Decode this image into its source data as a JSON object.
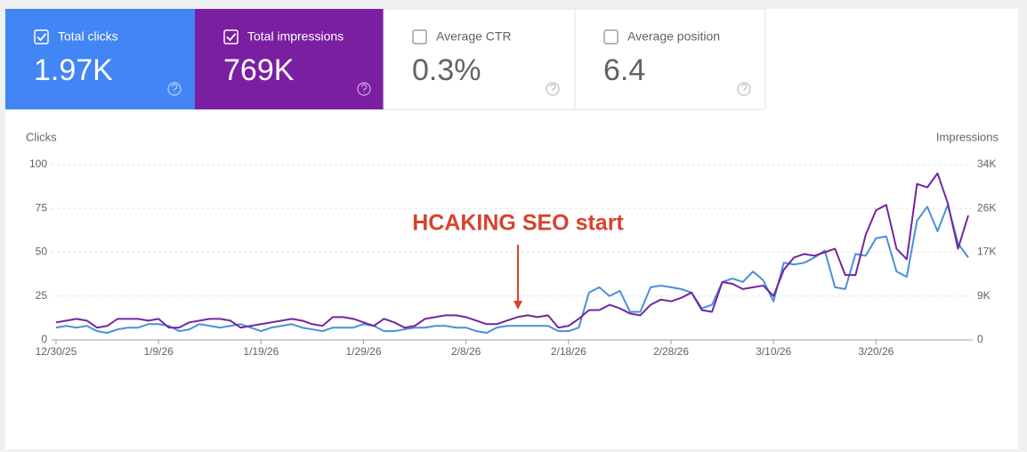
{
  "cards": [
    {
      "label": "Total clicks",
      "value": "1.97K",
      "checked": true,
      "color": "#4285f4"
    },
    {
      "label": "Total impressions",
      "value": "769K",
      "checked": true,
      "color": "#7b1fa2"
    },
    {
      "label": "Average CTR",
      "value": "0.3%",
      "checked": false,
      "color": "#ffffff"
    },
    {
      "label": "Average position",
      "value": "6.4",
      "checked": false,
      "color": "#ffffff"
    }
  ],
  "chart_data": {
    "type": "line",
    "annotation": "HCAKING SEO start",
    "categories": [
      "12/30/25",
      null,
      null,
      null,
      null,
      null,
      null,
      null,
      null,
      null,
      "1/9/26",
      null,
      null,
      null,
      null,
      null,
      null,
      null,
      null,
      null,
      "1/19/26",
      null,
      null,
      null,
      null,
      null,
      null,
      null,
      null,
      null,
      "1/29/26",
      null,
      null,
      null,
      null,
      null,
      null,
      null,
      null,
      null,
      "2/8/26",
      null,
      null,
      null,
      null,
      null,
      null,
      null,
      null,
      null,
      "2/18/26",
      null,
      null,
      null,
      null,
      null,
      null,
      null,
      null,
      null,
      "2/28/26",
      null,
      null,
      null,
      null,
      null,
      null,
      null,
      null,
      null,
      "3/10/26",
      null,
      null,
      null,
      null,
      null,
      null,
      null,
      null,
      null,
      "3/20/26",
      null,
      null,
      null,
      null,
      null,
      null,
      null,
      null,
      null
    ],
    "series": [
      {
        "name": "Clicks",
        "color": "#4a8fdb",
        "values": [
          7,
          8,
          7,
          8,
          5,
          4,
          6,
          7,
          7,
          9,
          9,
          8,
          5,
          6,
          9,
          8,
          7,
          8,
          9,
          7,
          5,
          7,
          8,
          9,
          7,
          6,
          5,
          7,
          7,
          7,
          9,
          8,
          5,
          5,
          6,
          7,
          7,
          8,
          8,
          7,
          7,
          5,
          4,
          7,
          8,
          8,
          8,
          8,
          8,
          5,
          5,
          7,
          27,
          30,
          25,
          28,
          16,
          16,
          30,
          31,
          30,
          29,
          27,
          18,
          20,
          33,
          35,
          33,
          39,
          34,
          22,
          44,
          43,
          44,
          47,
          51,
          30,
          29,
          49,
          48,
          58,
          59,
          39,
          36,
          68,
          76,
          62,
          77,
          55,
          47
        ]
      },
      {
        "name": "Impressions",
        "color": "#7326a0",
        "axis": "y2",
        "values": [
          3400,
          3740,
          4080,
          3740,
          2380,
          2720,
          4080,
          4080,
          4080,
          3740,
          4080,
          2380,
          2380,
          3400,
          3740,
          4080,
          4080,
          3740,
          2380,
          2720,
          3060,
          3400,
          3740,
          4080,
          3740,
          3060,
          2720,
          4420,
          4420,
          4080,
          3400,
          2720,
          4080,
          3400,
          2380,
          2720,
          4080,
          4420,
          4760,
          4760,
          4420,
          3740,
          3060,
          3060,
          3740,
          4420,
          4760,
          4420,
          4760,
          2380,
          2720,
          4080,
          5780,
          5780,
          6800,
          6120,
          5100,
          4760,
          6800,
          7820,
          7480,
          8160,
          9180,
          5780,
          5440,
          11220,
          10880,
          9860,
          10200,
          10540,
          8500,
          13600,
          15980,
          16660,
          16320,
          17000,
          17680,
          12580,
          12580,
          20400,
          25160,
          26180,
          17680,
          15640,
          30260,
          29580,
          32300,
          26520,
          17680,
          24140
        ]
      }
    ],
    "ylim": [
      0,
      100
    ],
    "yticks": [
      0,
      25,
      50,
      75,
      100
    ],
    "y2lim": [
      0,
      34000
    ],
    "y2ticks": [
      0,
      {
        "value": 8500,
        "label": "9K"
      },
      {
        "value": 17000,
        "label": "17K"
      },
      {
        "value": 25500,
        "label": "26K"
      },
      {
        "value": 34000,
        "label": "34K"
      }
    ],
    "grid": true
  }
}
